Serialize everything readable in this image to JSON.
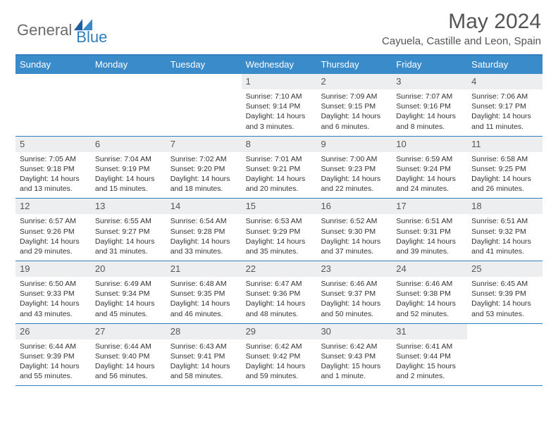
{
  "logo": {
    "text1": "General",
    "text2": "Blue"
  },
  "title": "May 2024",
  "location": "Cayuela, Castille and Leon, Spain",
  "colors": {
    "brand_blue": "#2f7fbf",
    "header_blue": "#3a8bc9",
    "grey_text": "#555555",
    "light_grey_bg": "#eceef0",
    "white": "#ffffff"
  },
  "day_headers": [
    "Sunday",
    "Monday",
    "Tuesday",
    "Wednesday",
    "Thursday",
    "Friday",
    "Saturday"
  ],
  "weeks": [
    [
      {
        "blank": true
      },
      {
        "blank": true
      },
      {
        "blank": true
      },
      {
        "num": "1",
        "sunrise": "7:10 AM",
        "sunset": "9:14 PM",
        "daylight": "14 hours and 3 minutes."
      },
      {
        "num": "2",
        "sunrise": "7:09 AM",
        "sunset": "9:15 PM",
        "daylight": "14 hours and 6 minutes."
      },
      {
        "num": "3",
        "sunrise": "7:07 AM",
        "sunset": "9:16 PM",
        "daylight": "14 hours and 8 minutes."
      },
      {
        "num": "4",
        "sunrise": "7:06 AM",
        "sunset": "9:17 PM",
        "daylight": "14 hours and 11 minutes."
      }
    ],
    [
      {
        "num": "5",
        "sunrise": "7:05 AM",
        "sunset": "9:18 PM",
        "daylight": "14 hours and 13 minutes."
      },
      {
        "num": "6",
        "sunrise": "7:04 AM",
        "sunset": "9:19 PM",
        "daylight": "14 hours and 15 minutes."
      },
      {
        "num": "7",
        "sunrise": "7:02 AM",
        "sunset": "9:20 PM",
        "daylight": "14 hours and 18 minutes."
      },
      {
        "num": "8",
        "sunrise": "7:01 AM",
        "sunset": "9:21 PM",
        "daylight": "14 hours and 20 minutes."
      },
      {
        "num": "9",
        "sunrise": "7:00 AM",
        "sunset": "9:23 PM",
        "daylight": "14 hours and 22 minutes."
      },
      {
        "num": "10",
        "sunrise": "6:59 AM",
        "sunset": "9:24 PM",
        "daylight": "14 hours and 24 minutes."
      },
      {
        "num": "11",
        "sunrise": "6:58 AM",
        "sunset": "9:25 PM",
        "daylight": "14 hours and 26 minutes."
      }
    ],
    [
      {
        "num": "12",
        "sunrise": "6:57 AM",
        "sunset": "9:26 PM",
        "daylight": "14 hours and 29 minutes."
      },
      {
        "num": "13",
        "sunrise": "6:55 AM",
        "sunset": "9:27 PM",
        "daylight": "14 hours and 31 minutes."
      },
      {
        "num": "14",
        "sunrise": "6:54 AM",
        "sunset": "9:28 PM",
        "daylight": "14 hours and 33 minutes."
      },
      {
        "num": "15",
        "sunrise": "6:53 AM",
        "sunset": "9:29 PM",
        "daylight": "14 hours and 35 minutes."
      },
      {
        "num": "16",
        "sunrise": "6:52 AM",
        "sunset": "9:30 PM",
        "daylight": "14 hours and 37 minutes."
      },
      {
        "num": "17",
        "sunrise": "6:51 AM",
        "sunset": "9:31 PM",
        "daylight": "14 hours and 39 minutes."
      },
      {
        "num": "18",
        "sunrise": "6:51 AM",
        "sunset": "9:32 PM",
        "daylight": "14 hours and 41 minutes."
      }
    ],
    [
      {
        "num": "19",
        "sunrise": "6:50 AM",
        "sunset": "9:33 PM",
        "daylight": "14 hours and 43 minutes."
      },
      {
        "num": "20",
        "sunrise": "6:49 AM",
        "sunset": "9:34 PM",
        "daylight": "14 hours and 45 minutes."
      },
      {
        "num": "21",
        "sunrise": "6:48 AM",
        "sunset": "9:35 PM",
        "daylight": "14 hours and 46 minutes."
      },
      {
        "num": "22",
        "sunrise": "6:47 AM",
        "sunset": "9:36 PM",
        "daylight": "14 hours and 48 minutes."
      },
      {
        "num": "23",
        "sunrise": "6:46 AM",
        "sunset": "9:37 PM",
        "daylight": "14 hours and 50 minutes."
      },
      {
        "num": "24",
        "sunrise": "6:46 AM",
        "sunset": "9:38 PM",
        "daylight": "14 hours and 52 minutes."
      },
      {
        "num": "25",
        "sunrise": "6:45 AM",
        "sunset": "9:39 PM",
        "daylight": "14 hours and 53 minutes."
      }
    ],
    [
      {
        "num": "26",
        "sunrise": "6:44 AM",
        "sunset": "9:39 PM",
        "daylight": "14 hours and 55 minutes."
      },
      {
        "num": "27",
        "sunrise": "6:44 AM",
        "sunset": "9:40 PM",
        "daylight": "14 hours and 56 minutes."
      },
      {
        "num": "28",
        "sunrise": "6:43 AM",
        "sunset": "9:41 PM",
        "daylight": "14 hours and 58 minutes."
      },
      {
        "num": "29",
        "sunrise": "6:42 AM",
        "sunset": "9:42 PM",
        "daylight": "14 hours and 59 minutes."
      },
      {
        "num": "30",
        "sunrise": "6:42 AM",
        "sunset": "9:43 PM",
        "daylight": "15 hours and 1 minute."
      },
      {
        "num": "31",
        "sunrise": "6:41 AM",
        "sunset": "9:44 PM",
        "daylight": "15 hours and 2 minutes."
      },
      {
        "blank": true
      }
    ]
  ],
  "labels": {
    "sunrise": "Sunrise: ",
    "sunset": "Sunset: ",
    "daylight": "Daylight: "
  }
}
